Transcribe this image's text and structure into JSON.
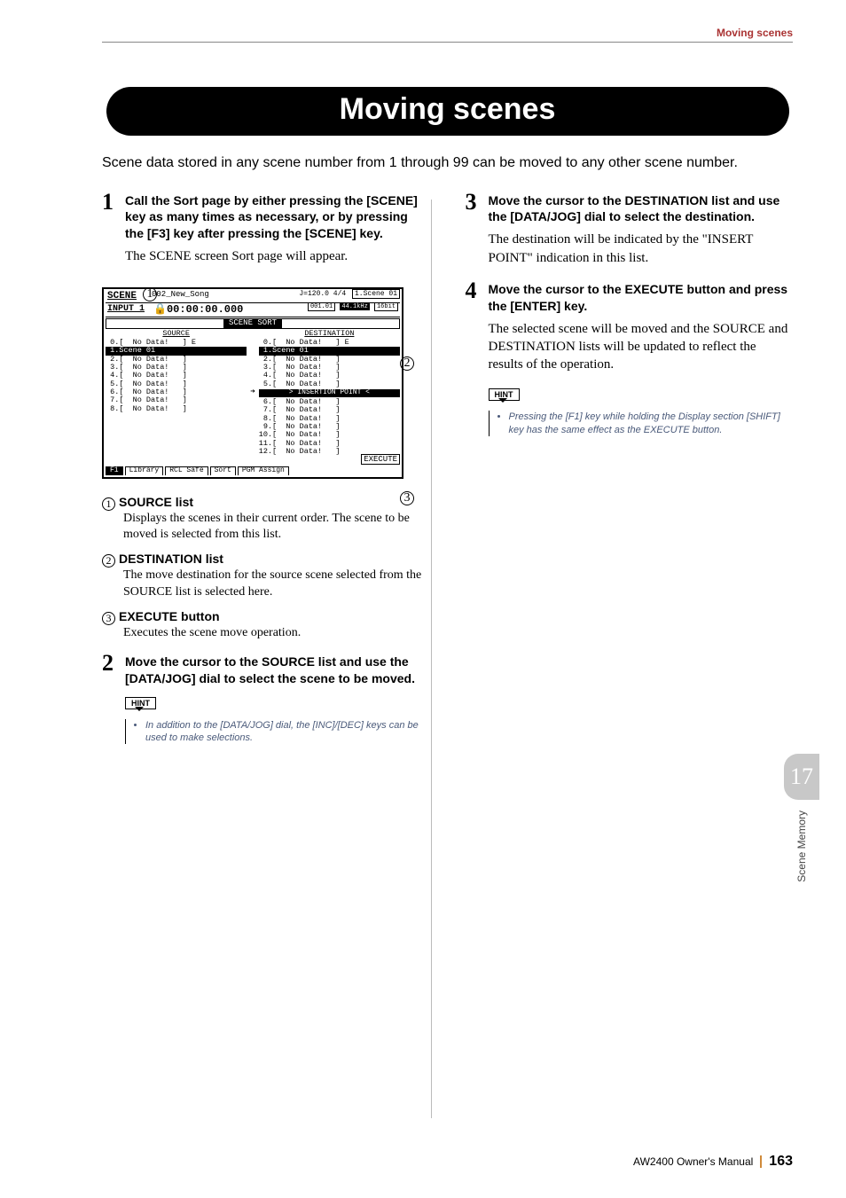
{
  "header": {
    "running_title": "Moving scenes"
  },
  "title": "Moving scenes",
  "intro": "Scene data stored in any scene number from 1 through 99 can be moved to any other scene number.",
  "left": {
    "step1": {
      "num": "1",
      "title": "Call the Sort page by either pressing the [SCENE] key as many times as necessary, or by pressing the [F3] key after pressing the [SCENE] key.",
      "body": "The SCENE screen Sort page will appear."
    },
    "lcd": {
      "callouts": {
        "a": "1",
        "b": "2",
        "c": "3"
      },
      "scene_label": "SCENE",
      "input_label": "INPUT 1",
      "song": "002_New_Song",
      "tempo": "J=120.0  4/4",
      "scene_badge": "1.Scene 01",
      "time": "00:00:00.000",
      "meas": "001.01",
      "sr": "44.1kHz",
      "bit": "16bit",
      "sort_header": "SCENE SORT",
      "src_header": "SOURCE",
      "dst_header": "DESTINATION",
      "src_rows": [
        " 0.[  No Data!   ] E",
        " 1.Scene 01        ",
        " 2.[  No Data!   ]",
        " 3.[  No Data!   ]",
        " 4.[  No Data!   ]",
        " 5.[  No Data!   ]",
        " 6.[  No Data!   ]",
        " 7.[  No Data!   ]",
        " 8.[  No Data!   ]"
      ],
      "src_selected_index": 1,
      "dst_top_rows": [
        " 0.[  No Data!   ] E",
        " 1.Scene 01        ",
        " 2.[  No Data!   ]",
        " 3.[  No Data!   ]",
        " 4.[  No Data!   ]",
        " 5.[  No Data!   ]"
      ],
      "dst_selected_index": 1,
      "insertion_label": ">  INSERTION POINT  <",
      "dst_bottom_rows": [
        " 6.[  No Data!   ]",
        " 7.[  No Data!   ]",
        " 8.[  No Data!   ]",
        " 9.[  No Data!   ]",
        "10.[  No Data!   ]",
        "11.[  No Data!   ]",
        "12.[  No Data!   ]"
      ],
      "execute_button": "EXECUTE",
      "tabs": {
        "f1": "F1",
        "library": "Library",
        "rcl_safe": "RCL Safe",
        "sort": "Sort",
        "pgm": "PGM Assign"
      }
    },
    "labels": {
      "l1": {
        "num": "1",
        "title": "SOURCE list",
        "body": "Displays the scenes in their current order. The scene to be moved is selected from this list."
      },
      "l2": {
        "num": "2",
        "title": "DESTINATION list",
        "body": "The move destination for the source scene selected from the SOURCE list is selected here."
      },
      "l3": {
        "num": "3",
        "title": "EXECUTE button",
        "body": "Executes the scene move operation."
      }
    },
    "step2": {
      "num": "2",
      "title": "Move the cursor to the SOURCE list and use the [DATA/JOG] dial to select the scene to be moved."
    },
    "hint": {
      "tag": "HINT",
      "body": "In addition to the [DATA/JOG] dial, the [INC]/[DEC] keys can be used to make selections."
    }
  },
  "right": {
    "step3": {
      "num": "3",
      "title": "Move the cursor to the DESTINATION list and use the [DATA/JOG] dial to select the destination.",
      "body": "The destination will be indicated by the \"INSERT POINT\" indication in this list."
    },
    "step4": {
      "num": "4",
      "title": "Move the cursor to the EXECUTE button and press the [ENTER] key.",
      "body": "The selected scene will be moved and the SOURCE and DESTINATION lists will be updated to reflect the results of the operation."
    },
    "hint": {
      "tag": "HINT",
      "body": "Pressing the [F1] key while holding the Display section [SHIFT] key has the same effect as the EXECUTE button."
    }
  },
  "side": {
    "chapter": "17",
    "label": "Scene Memory"
  },
  "footer": {
    "manual": "AW2400  Owner's Manual",
    "page": "163"
  },
  "colors": {
    "accent_header": "#aa3333",
    "hint_text": "#4a5a7a",
    "side_chip": "#c8c8c8",
    "footer_bar": "#d08a3a"
  }
}
